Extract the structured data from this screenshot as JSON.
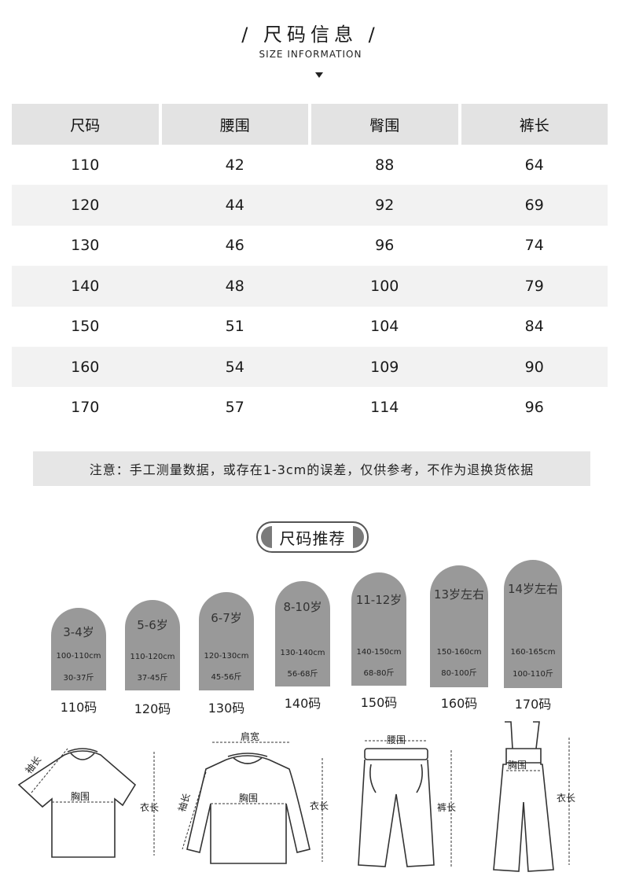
{
  "header": {
    "title": "/ 尺码信息 /",
    "subtitle": "SIZE INFORMATION"
  },
  "table": {
    "columns": [
      "尺码",
      "腰围",
      "臀围",
      "裤长"
    ],
    "rows": [
      [
        "110",
        "42",
        "88",
        "64"
      ],
      [
        "120",
        "44",
        "92",
        "69"
      ],
      [
        "130",
        "46",
        "96",
        "74"
      ],
      [
        "140",
        "48",
        "100",
        "79"
      ],
      [
        "150",
        "51",
        "104",
        "84"
      ],
      [
        "160",
        "54",
        "109",
        "90"
      ],
      [
        "170",
        "57",
        "114",
        "96"
      ]
    ]
  },
  "note": "注意：手工测量数据，或存在1-3cm的误差，仅供参考，不作为退换货依据",
  "recommend": {
    "title": "尺码推荐",
    "items": [
      {
        "age": "3-4岁",
        "height": "100-110cm",
        "weight": "30-37斤",
        "size": "110码"
      },
      {
        "age": "5-6岁",
        "height": "110-120cm",
        "weight": "37-45斤",
        "size": "120码"
      },
      {
        "age": "6-7岁",
        "height": "120-130cm",
        "weight": "45-56斤",
        "size": "130码"
      },
      {
        "age": "8-10岁",
        "height": "130-140cm",
        "weight": "56-68斤",
        "size": "140码"
      },
      {
        "age": "11-12岁",
        "height": "140-150cm",
        "weight": "68-80斤",
        "size": "150码"
      },
      {
        "age": "13岁左右",
        "height": "150-160cm",
        "weight": "80-100斤",
        "size": "160码"
      },
      {
        "age": "14岁左右",
        "height": "160-165cm",
        "weight": "100-110斤",
        "size": "170码"
      }
    ]
  },
  "diagrams": {
    "tshirt": {
      "sleeve": "袖长",
      "chest": "胸围",
      "length": "衣长"
    },
    "sweater": {
      "shoulder": "肩宽",
      "sleeve": "袖长",
      "chest": "胸围",
      "length": "衣长"
    },
    "shorts": {
      "waist": "腰围",
      "length": "裤长"
    },
    "overalls": {
      "chest": "胸围",
      "length": "衣长"
    }
  }
}
